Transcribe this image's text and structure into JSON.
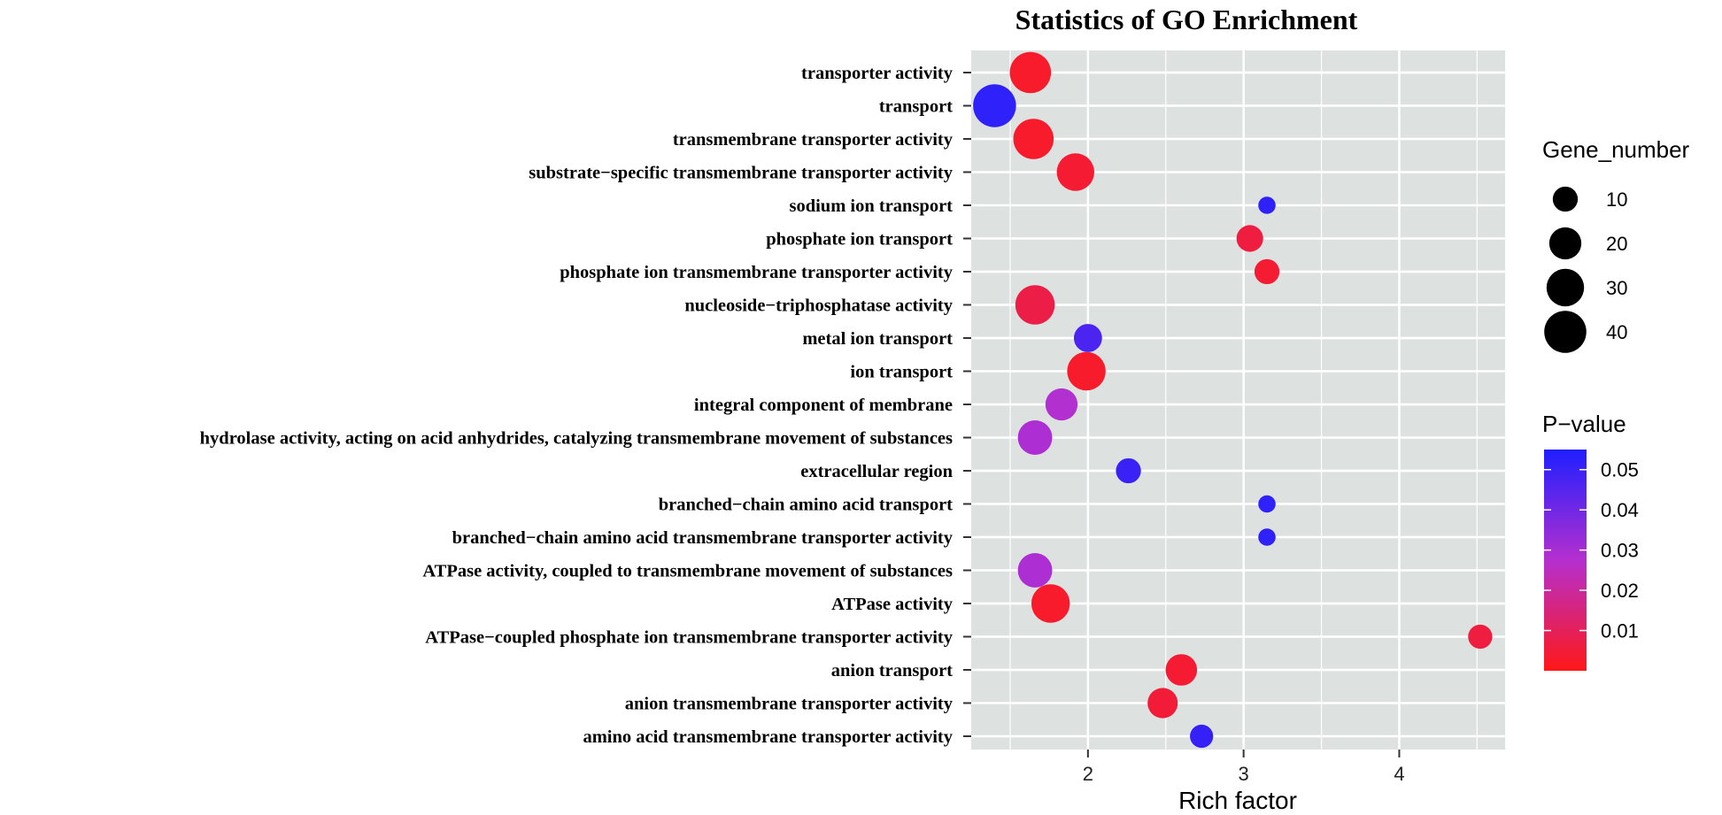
{
  "chart_data": {
    "type": "scatter",
    "title": "Statistics of GO Enrichment",
    "xlabel": "Rich factor",
    "ylabel": "",
    "xlim": [
      1.25,
      4.68
    ],
    "xticks": [
      2,
      3,
      4
    ],
    "grid": true,
    "terms": [
      {
        "term": "transporter activity",
        "rich_factor": 1.63,
        "gene_number": 38,
        "p_value": 0.003
      },
      {
        "term": "transport",
        "rich_factor": 1.4,
        "gene_number": 42,
        "p_value": 0.052
      },
      {
        "term": "transmembrane transporter activity",
        "rich_factor": 1.65,
        "gene_number": 36,
        "p_value": 0.003
      },
      {
        "term": "substrate−specific transmembrane transporter activity",
        "rich_factor": 1.92,
        "gene_number": 30,
        "p_value": 0.004
      },
      {
        "term": "sodium ion transport",
        "rich_factor": 3.15,
        "gene_number": 3,
        "p_value": 0.052
      },
      {
        "term": "phosphate ion transport",
        "rich_factor": 3.04,
        "gene_number": 12,
        "p_value": 0.006
      },
      {
        "term": "phosphate ion transmembrane transporter activity",
        "rich_factor": 3.15,
        "gene_number": 10,
        "p_value": 0.004
      },
      {
        "term": "nucleoside−triphosphatase activity",
        "rich_factor": 1.66,
        "gene_number": 34,
        "p_value": 0.007
      },
      {
        "term": "metal ion transport",
        "rich_factor": 2.0,
        "gene_number": 14,
        "p_value": 0.047
      },
      {
        "term": "ion transport",
        "rich_factor": 1.99,
        "gene_number": 32,
        "p_value": 0.003
      },
      {
        "term": "integral component of membrane",
        "rich_factor": 1.83,
        "gene_number": 20,
        "p_value": 0.028
      },
      {
        "term": "hydrolase activity, acting on acid anhydrides, catalyzing transmembrane movement of substances",
        "rich_factor": 1.66,
        "gene_number": 24,
        "p_value": 0.029
      },
      {
        "term": "extracellular region",
        "rich_factor": 2.26,
        "gene_number": 10,
        "p_value": 0.05
      },
      {
        "term": "branched−chain amino acid transport",
        "rich_factor": 3.15,
        "gene_number": 3,
        "p_value": 0.052
      },
      {
        "term": "branched−chain amino acid transmembrane transporter activity",
        "rich_factor": 3.15,
        "gene_number": 3,
        "p_value": 0.052
      },
      {
        "term": "ATPase activity, coupled to transmembrane movement of substances",
        "rich_factor": 1.66,
        "gene_number": 24,
        "p_value": 0.029
      },
      {
        "term": "ATPase activity",
        "rich_factor": 1.76,
        "gene_number": 32,
        "p_value": 0.003
      },
      {
        "term": "ATPase−coupled phosphate ion transmembrane transporter activity",
        "rich_factor": 4.52,
        "gene_number": 9,
        "p_value": 0.006
      },
      {
        "term": "anion transport",
        "rich_factor": 2.6,
        "gene_number": 19,
        "p_value": 0.004
      },
      {
        "term": "anion transmembrane transporter activity",
        "rich_factor": 2.48,
        "gene_number": 17,
        "p_value": 0.005
      },
      {
        "term": "amino acid transmembrane transporter activity",
        "rich_factor": 2.73,
        "gene_number": 8,
        "p_value": 0.051
      }
    ],
    "size_legend": {
      "title": "Gene_number",
      "values": [
        10,
        20,
        30,
        40
      ],
      "labels": [
        "10",
        "20",
        "30",
        "40"
      ]
    },
    "color_legend": {
      "title": "P−value",
      "min": 0.0,
      "max": 0.055,
      "ticks": [
        0.05,
        0.04,
        0.03,
        0.02,
        0.01
      ],
      "tick_labels": [
        "0.05",
        "0.04",
        "0.03",
        "0.02",
        "0.01"
      ],
      "low_color": "#ff0000",
      "high_color": "#0000ff"
    },
    "colors": {
      "panel": "#dde2e1",
      "grid": "#ffffff"
    }
  }
}
